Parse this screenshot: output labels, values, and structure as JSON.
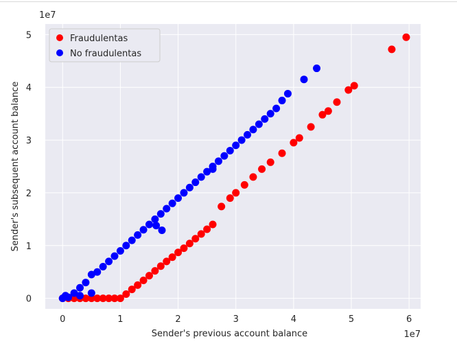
{
  "chart_data": {
    "type": "scatter",
    "title": "",
    "xlabel": "Sender's previous account balance",
    "ylabel": "Sender's subsequent account balance",
    "x_offset_label": "1e7",
    "y_offset_label": "1e7",
    "xlim": [
      -0.3,
      6.2
    ],
    "ylim": [
      -0.2,
      5.2
    ],
    "x_ticks": [
      0,
      1,
      2,
      3,
      4,
      5,
      6
    ],
    "y_ticks": [
      0,
      1,
      2,
      3,
      4,
      5
    ],
    "grid": true,
    "legend_position": "top-left",
    "series": [
      {
        "name": "Fraudulentas",
        "color": "#ff0000",
        "points": [
          [
            0.0,
            0.0
          ],
          [
            0.1,
            0.0
          ],
          [
            0.2,
            0.0
          ],
          [
            0.3,
            0.0
          ],
          [
            0.4,
            0.0
          ],
          [
            0.5,
            0.0
          ],
          [
            0.6,
            0.0
          ],
          [
            0.7,
            0.0
          ],
          [
            0.8,
            0.0
          ],
          [
            0.9,
            0.0
          ],
          [
            1.0,
            0.0
          ],
          [
            1.1,
            0.08
          ],
          [
            1.2,
            0.17
          ],
          [
            1.3,
            0.25
          ],
          [
            1.4,
            0.34
          ],
          [
            1.5,
            0.43
          ],
          [
            1.6,
            0.52
          ],
          [
            1.7,
            0.61
          ],
          [
            1.8,
            0.7
          ],
          [
            1.9,
            0.78
          ],
          [
            2.0,
            0.87
          ],
          [
            2.1,
            0.95
          ],
          [
            2.2,
            1.04
          ],
          [
            2.3,
            1.13
          ],
          [
            2.4,
            1.22
          ],
          [
            2.5,
            1.31
          ],
          [
            2.6,
            1.4
          ],
          [
            2.75,
            1.74
          ],
          [
            2.9,
            1.9
          ],
          [
            3.0,
            2.0
          ],
          [
            3.15,
            2.15
          ],
          [
            3.3,
            2.3
          ],
          [
            3.45,
            2.45
          ],
          [
            3.6,
            2.58
          ],
          [
            3.8,
            2.75
          ],
          [
            4.0,
            2.95
          ],
          [
            4.1,
            3.04
          ],
          [
            4.3,
            3.25
          ],
          [
            4.5,
            3.48
          ],
          [
            4.6,
            3.55
          ],
          [
            4.75,
            3.72
          ],
          [
            4.95,
            3.95
          ],
          [
            5.05,
            4.03
          ],
          [
            5.7,
            4.72
          ],
          [
            5.95,
            4.95
          ]
        ]
      },
      {
        "name": "No fraudulentas",
        "color": "#0000ff",
        "points": [
          [
            0.0,
            0.0
          ],
          [
            0.05,
            0.05
          ],
          [
            0.1,
            0.02
          ],
          [
            0.2,
            0.1
          ],
          [
            0.3,
            0.2
          ],
          [
            0.3,
            0.05
          ],
          [
            0.4,
            0.3
          ],
          [
            0.5,
            0.45
          ],
          [
            0.5,
            0.1
          ],
          [
            0.6,
            0.5
          ],
          [
            0.7,
            0.6
          ],
          [
            0.8,
            0.7
          ],
          [
            0.9,
            0.8
          ],
          [
            1.0,
            0.9
          ],
          [
            1.1,
            1.0
          ],
          [
            1.2,
            1.1
          ],
          [
            1.3,
            1.2
          ],
          [
            1.4,
            1.3
          ],
          [
            1.5,
            1.4
          ],
          [
            1.6,
            1.5
          ],
          [
            1.62,
            1.38
          ],
          [
            1.7,
            1.6
          ],
          [
            1.72,
            1.29
          ],
          [
            1.8,
            1.7
          ],
          [
            1.9,
            1.8
          ],
          [
            2.0,
            1.9
          ],
          [
            2.1,
            2.0
          ],
          [
            2.2,
            2.1
          ],
          [
            2.3,
            2.2
          ],
          [
            2.4,
            2.3
          ],
          [
            2.5,
            2.4
          ],
          [
            2.6,
            2.5
          ],
          [
            2.6,
            2.45
          ],
          [
            2.7,
            2.6
          ],
          [
            2.8,
            2.7
          ],
          [
            2.9,
            2.8
          ],
          [
            3.0,
            2.9
          ],
          [
            3.1,
            3.0
          ],
          [
            3.2,
            3.1
          ],
          [
            3.3,
            3.2
          ],
          [
            3.4,
            3.3
          ],
          [
            3.5,
            3.4
          ],
          [
            3.6,
            3.5
          ],
          [
            3.7,
            3.6
          ],
          [
            3.8,
            3.75
          ],
          [
            3.9,
            3.88
          ],
          [
            4.18,
            4.15
          ],
          [
            4.4,
            4.36
          ]
        ]
      }
    ]
  }
}
